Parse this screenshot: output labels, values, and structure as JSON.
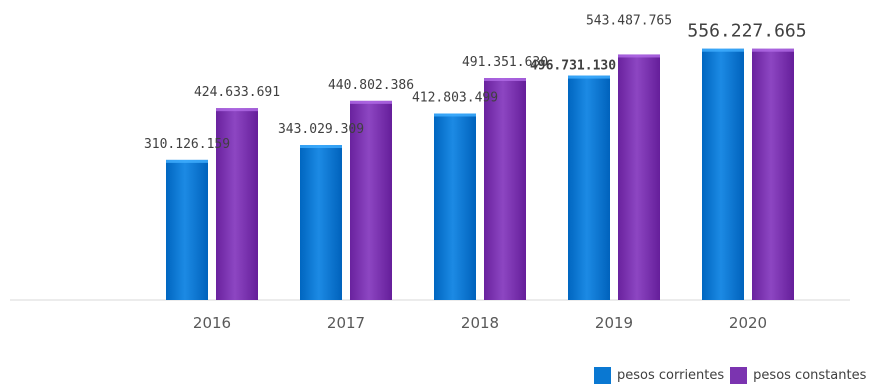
{
  "chart_data": {
    "type": "bar",
    "categories": [
      "2016",
      "2017",
      "2018",
      "2019",
      "2020"
    ],
    "series": [
      {
        "name": "pesos corrientes",
        "color": "#0a78d2",
        "values": [
          310126159,
          343029309,
          412803499,
          496731130,
          556227665
        ],
        "labels": [
          "310.126.159",
          "343.029.309",
          "412.803.499",
          "496.731.130",
          ""
        ]
      },
      {
        "name": "pesos constantes",
        "color": "#7b34b0",
        "values": [
          424633691,
          440802386,
          491351630,
          543487765,
          556227665
        ],
        "labels": [
          "424.633.691",
          "440.802.386",
          "491.351.630",
          "543.487.765",
          "556.227.665"
        ]
      }
    ],
    "ylim": [
      0,
      560000000
    ],
    "grid": false,
    "legend_position": "bottom-right"
  }
}
